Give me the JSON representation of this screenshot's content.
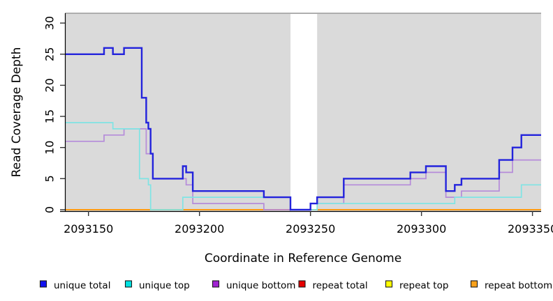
{
  "chart_data": {
    "type": "line",
    "subtype": "step",
    "title": "",
    "xlabel": "Coordinate in Reference Genome",
    "ylabel": "Read Coverage Depth",
    "xlim": [
      2093139.4,
      2093353.9
    ],
    "ylim": [
      0,
      31.6
    ],
    "x_ticks": [
      2093150,
      2093200,
      2093250,
      2093300,
      2093350
    ],
    "x_tick_labels": [
      "2093150",
      "2093200",
      "2093250",
      "2093300",
      "2093350"
    ],
    "y_ticks": [
      0,
      5,
      10,
      15,
      20,
      25,
      30
    ],
    "y_tick_labels": [
      "0",
      "5",
      "10",
      "15",
      "20",
      "25",
      "30"
    ],
    "grid": false,
    "plot_background_color": "#DADADA",
    "no_data_band": {
      "x_start": 2093241,
      "x_end": 2093253
    },
    "series": [
      {
        "name": "repeat total",
        "color": "#E60000",
        "width": 1.7,
        "steps": [
          [
            2093139.4,
            0
          ]
        ]
      },
      {
        "name": "repeat top",
        "color": "#FFFF00",
        "width": 1.7,
        "steps": [
          [
            2093139.4,
            0
          ]
        ]
      },
      {
        "name": "repeat bottom",
        "color": "#FF9C14",
        "width": 2.0,
        "steps": [
          [
            2093139.4,
            0
          ]
        ]
      },
      {
        "name": "unique bottom",
        "color": "#B58BD9",
        "width": 1.7,
        "steps": [
          [
            2093139.4,
            11
          ],
          [
            2093157,
            12
          ],
          [
            2093166,
            13
          ],
          [
            2093176,
            9
          ],
          [
            2093179,
            5
          ],
          [
            2093194,
            4
          ],
          [
            2093197,
            1
          ],
          [
            2093229,
            0
          ],
          [
            2093250,
            1
          ],
          [
            2093265,
            4
          ],
          [
            2093295,
            5
          ],
          [
            2093302,
            6
          ],
          [
            2093311,
            2
          ],
          [
            2093318,
            3
          ],
          [
            2093335,
            6
          ],
          [
            2093341,
            8
          ]
        ]
      },
      {
        "name": "unique top",
        "color": "#7FE4E4",
        "width": 1.7,
        "steps": [
          [
            2093139.4,
            14
          ],
          [
            2093161,
            13
          ],
          [
            2093173,
            5
          ],
          [
            2093177,
            4
          ],
          [
            2093178,
            0
          ],
          [
            2093192.5,
            2
          ],
          [
            2093241,
            0
          ],
          [
            2093253,
            1
          ],
          [
            2093315,
            2
          ],
          [
            2093345,
            4
          ]
        ]
      },
      {
        "name": "unique total",
        "color": "#2323DC",
        "width": 2.4,
        "steps": [
          [
            2093139.4,
            25
          ],
          [
            2093157,
            26
          ],
          [
            2093161,
            25
          ],
          [
            2093166,
            26
          ],
          [
            2093174,
            18
          ],
          [
            2093176,
            14
          ],
          [
            2093177,
            13
          ],
          [
            2093178,
            9
          ],
          [
            2093179,
            5
          ],
          [
            2093192.5,
            7
          ],
          [
            2093194,
            6
          ],
          [
            2093197,
            3
          ],
          [
            2093229,
            2
          ],
          [
            2093241,
            0
          ],
          [
            2093250,
            1
          ],
          [
            2093253,
            2
          ],
          [
            2093265,
            5
          ],
          [
            2093295,
            6
          ],
          [
            2093302,
            7
          ],
          [
            2093311,
            3
          ],
          [
            2093315,
            4
          ],
          [
            2093318,
            5
          ],
          [
            2093335,
            8
          ],
          [
            2093341,
            10
          ],
          [
            2093345,
            12
          ]
        ]
      }
    ],
    "legend": {
      "position": "bottom",
      "items": [
        {
          "label": "unique total",
          "color": "#1212F0"
        },
        {
          "label": "unique top",
          "color": "#00E2E2"
        },
        {
          "label": "unique bottom",
          "color": "#A023D2"
        },
        {
          "label": "repeat total",
          "color": "#E60000"
        },
        {
          "label": "repeat top",
          "color": "#FFFF00"
        },
        {
          "label": "repeat bottom",
          "color": "#F9A11B"
        }
      ]
    }
  }
}
